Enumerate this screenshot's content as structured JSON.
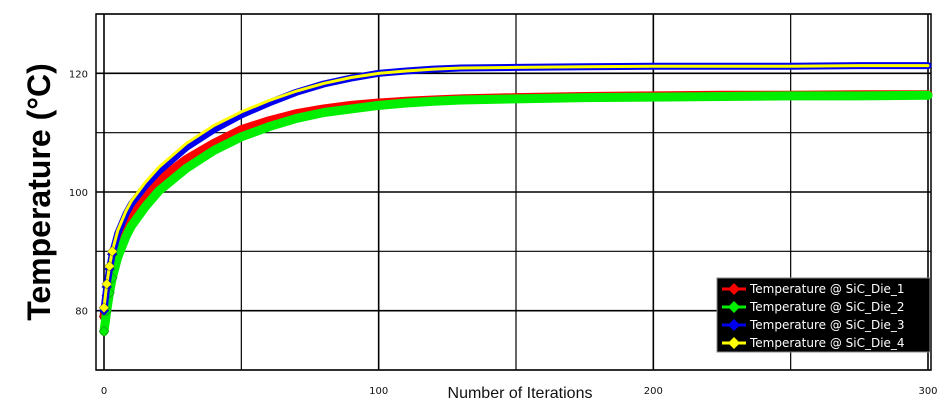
{
  "chart_data": {
    "type": "line",
    "xlabel": "Number of Iterations",
    "ylabel": "Temperature (°C)",
    "xlim": [
      0,
      300
    ],
    "ylim": [
      70,
      130
    ],
    "xticks": [
      0,
      100,
      200,
      300
    ],
    "yticks": [
      80,
      100,
      120
    ],
    "grid": true,
    "legend_position": "bottom-right",
    "legend_background": "#000000",
    "x": [
      0,
      1,
      2,
      3,
      5,
      8,
      10,
      15,
      20,
      30,
      40,
      50,
      60,
      70,
      80,
      90,
      100,
      110,
      120,
      130,
      150,
      175,
      200,
      225,
      250,
      275,
      300
    ],
    "series": [
      {
        "name": "Temperature @ SiC_Die_1",
        "color": "#ff0000",
        "values": [
          79.0,
          82.5,
          85.5,
          88.0,
          91.5,
          94.8,
          96.5,
          99.5,
          102.0,
          105.5,
          108.2,
          110.5,
          112.0,
          113.2,
          114.0,
          114.6,
          115.0,
          115.3,
          115.5,
          115.7,
          115.9,
          116.1,
          116.2,
          116.3,
          116.3,
          116.4,
          116.4
        ]
      },
      {
        "name": "Temperature @ SiC_Die_2",
        "color": "#00ee00",
        "values": [
          76.5,
          80.0,
          83.0,
          85.5,
          89.0,
          92.5,
          94.3,
          97.5,
          100.2,
          104.0,
          107.0,
          109.3,
          111.0,
          112.4,
          113.4,
          114.0,
          114.6,
          115.0,
          115.3,
          115.5,
          115.7,
          115.9,
          116.0,
          116.1,
          116.2,
          116.2,
          116.3
        ]
      },
      {
        "name": "Temperature @ SiC_Die_3",
        "color": "#0000ee",
        "values": [
          80.0,
          84.0,
          87.0,
          89.5,
          93.0,
          96.3,
          98.0,
          101.0,
          103.5,
          107.5,
          110.5,
          113.0,
          115.0,
          116.8,
          118.2,
          119.2,
          120.0,
          120.4,
          120.7,
          120.9,
          121.0,
          121.1,
          121.2,
          121.2,
          121.2,
          121.3,
          121.3
        ]
      },
      {
        "name": "Temperature @ SiC_Die_4",
        "color": "#ffff00",
        "values": [
          80.5,
          84.5,
          87.5,
          90.0,
          93.5,
          96.8,
          98.5,
          101.6,
          104.2,
          108.2,
          111.2,
          113.5,
          115.4,
          117.0,
          118.3,
          119.3,
          120.0,
          120.4,
          120.7,
          120.9,
          121.0,
          121.1,
          121.2,
          121.2,
          121.2,
          121.3,
          121.3
        ]
      }
    ]
  }
}
